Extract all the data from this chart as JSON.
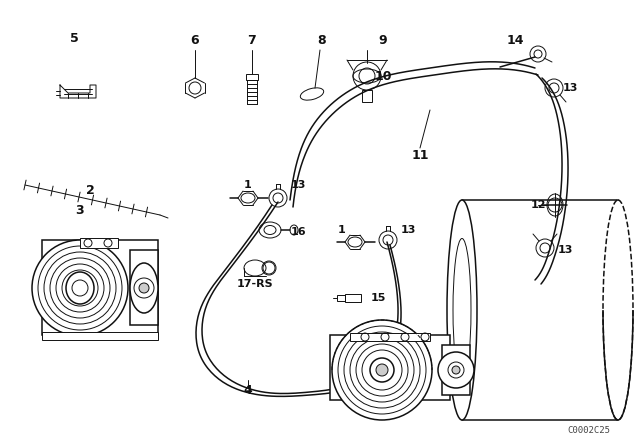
{
  "bg_color": "#ffffff",
  "line_color": "#111111",
  "fig_width": 6.4,
  "fig_height": 4.48,
  "dpi": 100,
  "watermark": "C0002C25"
}
